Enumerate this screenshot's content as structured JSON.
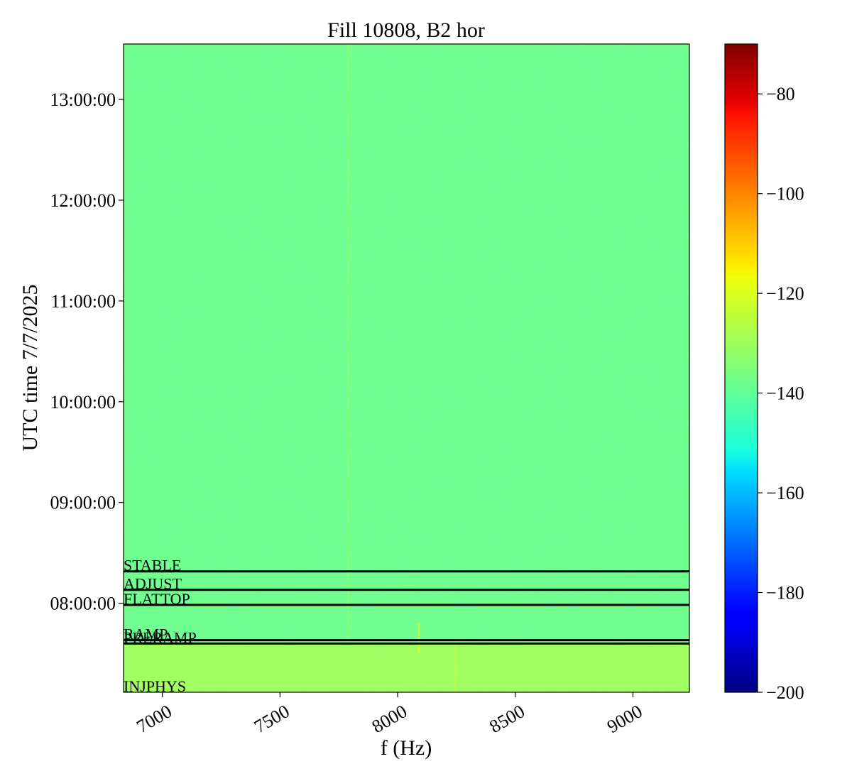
{
  "chart_data": {
    "type": "heatmap",
    "title": "Fill 10808, B2 hor",
    "xlabel": "f (Hz)",
    "ylabel": "UTC time 7/7/2025",
    "x_range": [
      6835,
      9240
    ],
    "x_ticks": [
      {
        "value": 7000,
        "label": "7000"
      },
      {
        "value": 7500,
        "label": "7500"
      },
      {
        "value": 8000,
        "label": "8000"
      },
      {
        "value": 8500,
        "label": "8500"
      },
      {
        "value": 9000,
        "label": "9000"
      }
    ],
    "y_range": [
      "07:07:00",
      "13:33:00"
    ],
    "y_ticks": [
      {
        "value": "08:00:00",
        "label": "08:00:00"
      },
      {
        "value": "09:00:00",
        "label": "09:00:00"
      },
      {
        "value": "10:00:00",
        "label": "10:00:00"
      },
      {
        "value": "11:00:00",
        "label": "11:00:00"
      },
      {
        "value": "12:00:00",
        "label": "12:00:00"
      },
      {
        "value": "13:00:00",
        "label": "13:00:00"
      }
    ],
    "colormap": "jet",
    "color_range": [
      -200,
      -70
    ],
    "colorbar_ticks": [
      {
        "value": -80,
        "label": "−80"
      },
      {
        "value": -100,
        "label": "−100"
      },
      {
        "value": -120,
        "label": "−120"
      },
      {
        "value": -140,
        "label": "−140"
      },
      {
        "value": -160,
        "label": "−160"
      },
      {
        "value": -180,
        "label": "−180"
      },
      {
        "value": -200,
        "label": "−200"
      }
    ],
    "background_level": -137,
    "early_level": -129,
    "early_until": "07:36:00",
    "lines": [
      {
        "x": 7790,
        "level": -132,
        "from": "07:07:00",
        "to": "13:33:00"
      },
      {
        "x": 8090,
        "level": -122,
        "from": "07:30:00",
        "to": "07:48:00"
      },
      {
        "x": 8245,
        "level": -127,
        "from": "07:07:00",
        "to": "07:36:00"
      }
    ],
    "modes": [
      {
        "label": "INJPHYS",
        "time": "07:07:00",
        "line": false
      },
      {
        "label": "PRERAMP",
        "time": "07:36:00",
        "line": true
      },
      {
        "label": "RAMP",
        "time": "07:38:00",
        "line": true
      },
      {
        "label": "FLATTOP",
        "time": "07:59:00",
        "line": true
      },
      {
        "label": "ADJUST",
        "time": "08:08:00",
        "line": true
      },
      {
        "label": "STABLE",
        "time": "08:19:00",
        "line": true
      }
    ],
    "legend": "none",
    "grid": false
  }
}
